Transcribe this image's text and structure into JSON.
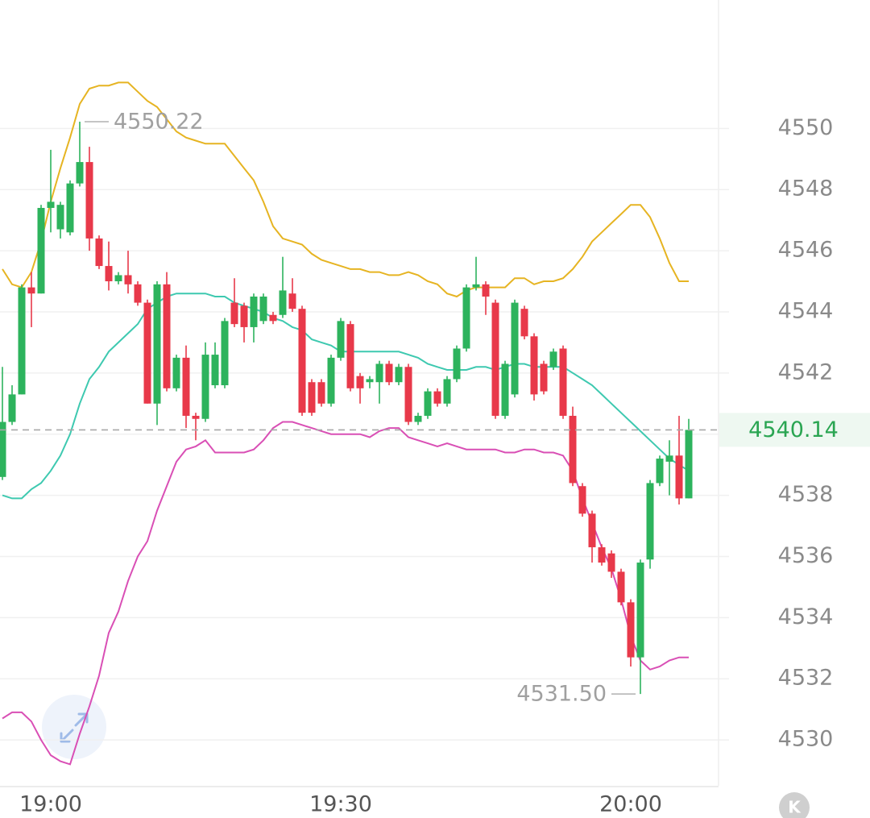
{
  "chart_data": {
    "type": "candlestick",
    "categories": [
      null,
      null,
      null,
      null,
      null,
      "19:00",
      null,
      null,
      null,
      null,
      null,
      null,
      null,
      null,
      null,
      null,
      null,
      null,
      null,
      null,
      null,
      null,
      null,
      null,
      null,
      null,
      null,
      null,
      null,
      null,
      null,
      null,
      null,
      null,
      null,
      "19:30",
      null,
      null,
      null,
      null,
      null,
      null,
      null,
      null,
      null,
      null,
      null,
      null,
      null,
      null,
      null,
      null,
      null,
      null,
      null,
      null,
      null,
      null,
      null,
      null,
      null,
      null,
      null,
      null,
      null,
      "20:00",
      null,
      null,
      null,
      null,
      null,
      null
    ],
    "open": [
      4538.6,
      4540.4,
      4541.3,
      4544.8,
      4544.6,
      4547.4,
      4546.7,
      4546.6,
      4548.2,
      4548.9,
      4546.4,
      4545.5,
      4545.0,
      4545.2,
      4544.9,
      4544.3,
      4541.0,
      4544.9,
      4541.5,
      4542.5,
      4540.6,
      4540.5,
      4541.6,
      4541.6,
      4544.3,
      4544.2,
      4543.5,
      4543.7,
      4543.9,
      4543.9,
      4544.6,
      4544.1,
      4541.7,
      4541.7,
      4541.0,
      4542.5,
      4543.6,
      4541.9,
      4541.7,
      4541.7,
      4542.3,
      4541.7,
      4542.2,
      4540.4,
      4540.6,
      4541.4,
      4541.0,
      4541.8,
      4542.8,
      4544.8,
      4544.9,
      4544.3,
      4540.6,
      4541.3,
      4544.1,
      4543.2,
      4542.3,
      4542.2,
      4542.8,
      4540.6,
      4538.3,
      4537.4,
      4536.3,
      4536.1,
      4535.5,
      4534.5,
      4532.7,
      4535.9,
      4538.4,
      4539.1,
      4539.3,
      4537.9
    ],
    "high": [
      4542.2,
      4541.6,
      4544.9,
      4545.3,
      4547.5,
      4549.3,
      4547.6,
      4548.3,
      4550.22,
      4549.4,
      4546.5,
      4546.3,
      4545.3,
      4546.0,
      4545.0,
      4544.4,
      4545.0,
      4545.3,
      4542.6,
      4542.9,
      4540.7,
      4543.0,
      4543.0,
      4543.8,
      4545.1,
      4544.3,
      4544.6,
      4544.6,
      4544.0,
      4545.8,
      4545.1,
      4544.2,
      4541.8,
      4541.8,
      4542.6,
      4543.8,
      4543.7,
      4542.0,
      4541.9,
      4542.4,
      4542.4,
      4542.3,
      4542.3,
      4540.7,
      4541.5,
      4541.5,
      4541.9,
      4542.9,
      4544.9,
      4545.8,
      4545.0,
      4544.4,
      4542.4,
      4544.4,
      4544.2,
      4543.3,
      4542.4,
      4542.8,
      4542.9,
      4540.9,
      4538.4,
      4537.5,
      4536.4,
      4536.2,
      4535.6,
      4534.6,
      4535.9,
      4538.5,
      4539.3,
      4539.8,
      4540.6,
      4540.5
    ],
    "low": [
      4538.5,
      4540.3,
      4541.3,
      4543.5,
      4544.6,
      4546.6,
      4546.4,
      4546.5,
      4548.1,
      4546.0,
      4545.4,
      4544.7,
      4544.9,
      4544.6,
      4544.2,
      4541.0,
      4540.3,
      4541.4,
      4541.4,
      4540.2,
      4539.8,
      4540.4,
      4541.5,
      4541.5,
      4543.5,
      4543.0,
      4543.0,
      4543.6,
      4543.6,
      4543.8,
      4544.0,
      4540.6,
      4540.6,
      4540.9,
      4540.9,
      4542.4,
      4541.4,
      4541.0,
      4541.5,
      4541.0,
      4541.6,
      4541.6,
      4540.3,
      4540.3,
      4540.5,
      4540.9,
      4540.9,
      4541.7,
      4542.7,
      4544.7,
      4543.9,
      4540.5,
      4540.5,
      4541.2,
      4543.1,
      4541.1,
      4541.3,
      4542.1,
      4540.5,
      4538.3,
      4537.3,
      4535.8,
      4535.7,
      4535.3,
      4534.4,
      4532.4,
      4531.5,
      4535.6,
      4538.3,
      4538.0,
      4537.7,
      4537.9
    ],
    "close": [
      4540.4,
      4541.3,
      4544.8,
      4544.6,
      4547.4,
      4547.6,
      4547.5,
      4548.2,
      4548.9,
      4546.4,
      4545.5,
      4545.0,
      4545.2,
      4544.9,
      4544.3,
      4541.0,
      4544.9,
      4541.5,
      4542.5,
      4540.6,
      4540.5,
      4542.6,
      4542.6,
      4543.7,
      4543.6,
      4543.5,
      4544.5,
      4544.5,
      4543.7,
      4544.7,
      4544.1,
      4540.7,
      4540.7,
      4541.0,
      4542.5,
      4543.7,
      4541.5,
      4541.5,
      4541.8,
      4542.3,
      4541.7,
      4542.2,
      4540.4,
      4540.6,
      4541.4,
      4541.0,
      4541.8,
      4542.8,
      4544.8,
      4544.9,
      4544.5,
      4540.6,
      4542.3,
      4544.3,
      4543.2,
      4541.3,
      4541.4,
      4542.7,
      4540.6,
      4538.4,
      4537.4,
      4536.3,
      4535.8,
      4535.5,
      4534.5,
      4532.7,
      4535.8,
      4538.4,
      4539.2,
      4539.3,
      4537.9,
      4540.14
    ],
    "up_color": "#2db35d",
    "down_color": "#e8394a",
    "bands": [
      {
        "color": "#e6b422",
        "values": [
          4545.4,
          4544.9,
          4544.8,
          4545.3,
          4546.3,
          4547.6,
          4548.7,
          4549.7,
          4550.8,
          4551.3,
          4551.4,
          4551.4,
          4551.5,
          4551.5,
          4551.2,
          4550.9,
          4550.7,
          4550.3,
          4549.9,
          4549.7,
          4549.6,
          4549.5,
          4549.5,
          4549.5,
          4549.1,
          4548.7,
          4548.3,
          4547.6,
          4546.8,
          4546.4,
          4546.3,
          4546.2,
          4545.9,
          4545.7,
          4545.6,
          4545.5,
          4545.4,
          4545.4,
          4545.3,
          4545.3,
          4545.2,
          4545.2,
          4545.3,
          4545.2,
          4545.0,
          4544.9,
          4544.6,
          4544.5,
          4544.7,
          4544.8,
          4544.8,
          4544.8,
          4544.8,
          4545.1,
          4545.1,
          4544.9,
          4545.0,
          4545.0,
          4545.1,
          4545.4,
          4545.8,
          4546.3,
          4546.6,
          4546.9,
          4547.2,
          4547.5,
          4547.5,
          4547.1,
          4546.4,
          4545.6,
          4545.0,
          4545.0
        ]
      },
      {
        "color": "#3ec9b0",
        "values": [
          4538.0,
          4537.9,
          4537.9,
          4538.2,
          4538.4,
          4538.8,
          4539.3,
          4540.0,
          4541.0,
          4541.8,
          4542.2,
          4542.7,
          4543.0,
          4543.3,
          4543.6,
          4544.1,
          4544.3,
          4544.5,
          4544.6,
          4544.6,
          4544.6,
          4544.6,
          4544.5,
          4544.5,
          4544.3,
          4544.2,
          4544.1,
          4544.0,
          4543.8,
          4543.7,
          4543.5,
          4543.4,
          4543.1,
          4543.0,
          4542.9,
          4542.7,
          4542.7,
          4542.7,
          4542.7,
          4542.7,
          4542.7,
          4542.7,
          4542.6,
          4542.5,
          4542.3,
          4542.2,
          4542.1,
          4542.1,
          4542.1,
          4542.2,
          4542.2,
          4542.1,
          4542.2,
          4542.3,
          4542.3,
          4542.2,
          4542.2,
          4542.2,
          4542.2,
          4542.0,
          4541.8,
          4541.6,
          4541.3,
          4541.0,
          4540.7,
          4540.4,
          4540.1,
          4539.8,
          4539.5,
          4539.2,
          4539.0,
          4538.8
        ]
      },
      {
        "color": "#d94fb5",
        "values": [
          4530.7,
          4530.9,
          4530.9,
          4530.6,
          4530.0,
          4529.5,
          4529.3,
          4529.2,
          4530.2,
          4531.1,
          4532.1,
          4533.5,
          4534.2,
          4535.2,
          4536.0,
          4536.5,
          4537.5,
          4538.3,
          4539.1,
          4539.5,
          4539.6,
          4539.8,
          4539.4,
          4539.4,
          4539.4,
          4539.4,
          4539.5,
          4539.8,
          4540.2,
          4540.4,
          4540.4,
          4540.3,
          4540.2,
          4540.1,
          4540.0,
          4540.0,
          4540.0,
          4540.0,
          4539.9,
          4540.1,
          4540.2,
          4540.2,
          4539.9,
          4539.8,
          4539.7,
          4539.6,
          4539.7,
          4539.6,
          4539.5,
          4539.5,
          4539.5,
          4539.5,
          4539.4,
          4539.4,
          4539.5,
          4539.5,
          4539.4,
          4539.4,
          4539.3,
          4538.8,
          4537.9,
          4537.1,
          4536.3,
          4535.6,
          4534.6,
          4533.4,
          4532.6,
          4532.3,
          4532.4,
          4532.6,
          4532.7,
          4532.7
        ]
      }
    ],
    "ylim": [
      4528.5,
      4554.2
    ],
    "yticks": [
      4530,
      4532,
      4534,
      4536,
      4538,
      4540,
      4542,
      4544,
      4546,
      4548,
      4550
    ],
    "grid": true,
    "last_price": 4540.14,
    "high_label": 4550.22,
    "low_label": {
      "value": 4531.5,
      "label": "4531.50"
    },
    "icon_label": "K"
  }
}
